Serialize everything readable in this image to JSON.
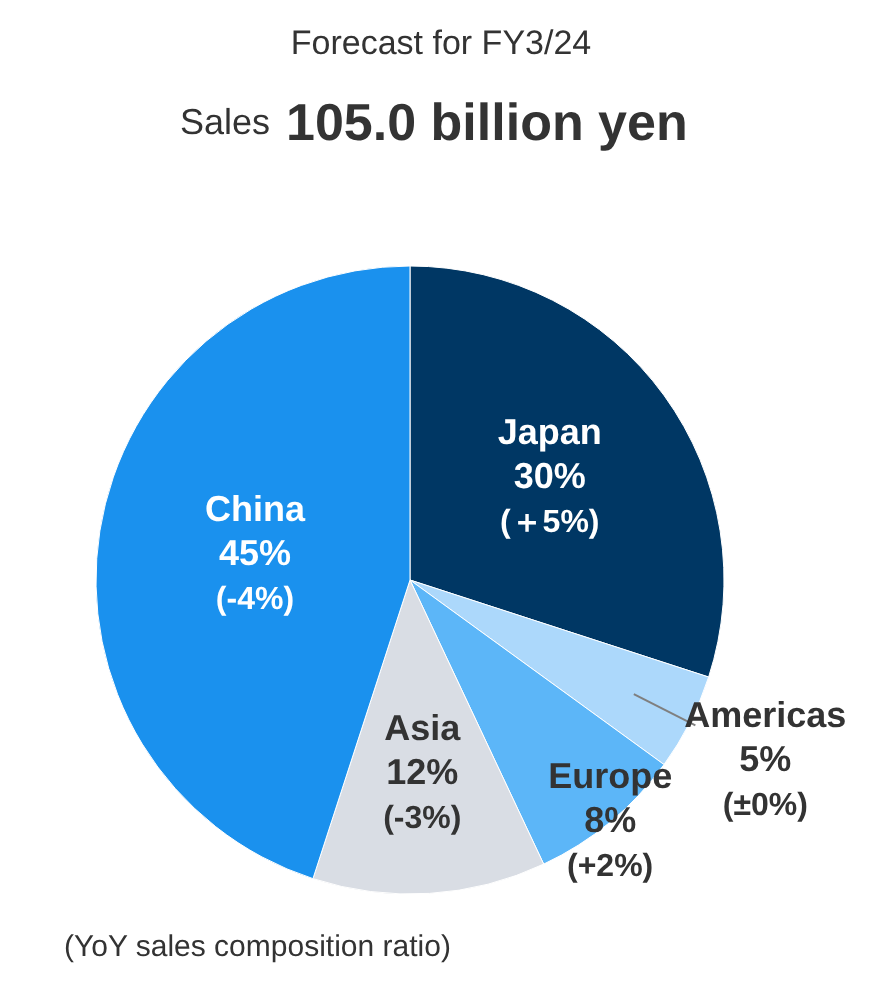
{
  "chart_data": {
    "type": "pie",
    "title": "Forecast for FY3/24",
    "subtitle": "Sales 105.0 billion yen",
    "categories": [
      "Japan",
      "Americas",
      "Europe",
      "Asia",
      "China"
    ],
    "values": [
      30,
      5,
      8,
      12,
      45
    ],
    "colors": [
      "#003764",
      "#acd8fb",
      "#5cb6f8",
      "#d9dde4",
      "#1a91ee"
    ],
    "value_labels": [
      "30%",
      "5%",
      "8%",
      "12%",
      "45%"
    ],
    "annotations": [
      {
        "text": "(＋5%)",
        "x": "Japan"
      },
      {
        "text": "(±0%)",
        "x": "Americas"
      },
      {
        "text": "(+2%)",
        "x": "Europe"
      },
      {
        "text": "(-3%)",
        "x": "Asia"
      },
      {
        "text": "(-4%)",
        "x": "China"
      },
      "(YoY sales composition ratio)"
    ]
  }
}
